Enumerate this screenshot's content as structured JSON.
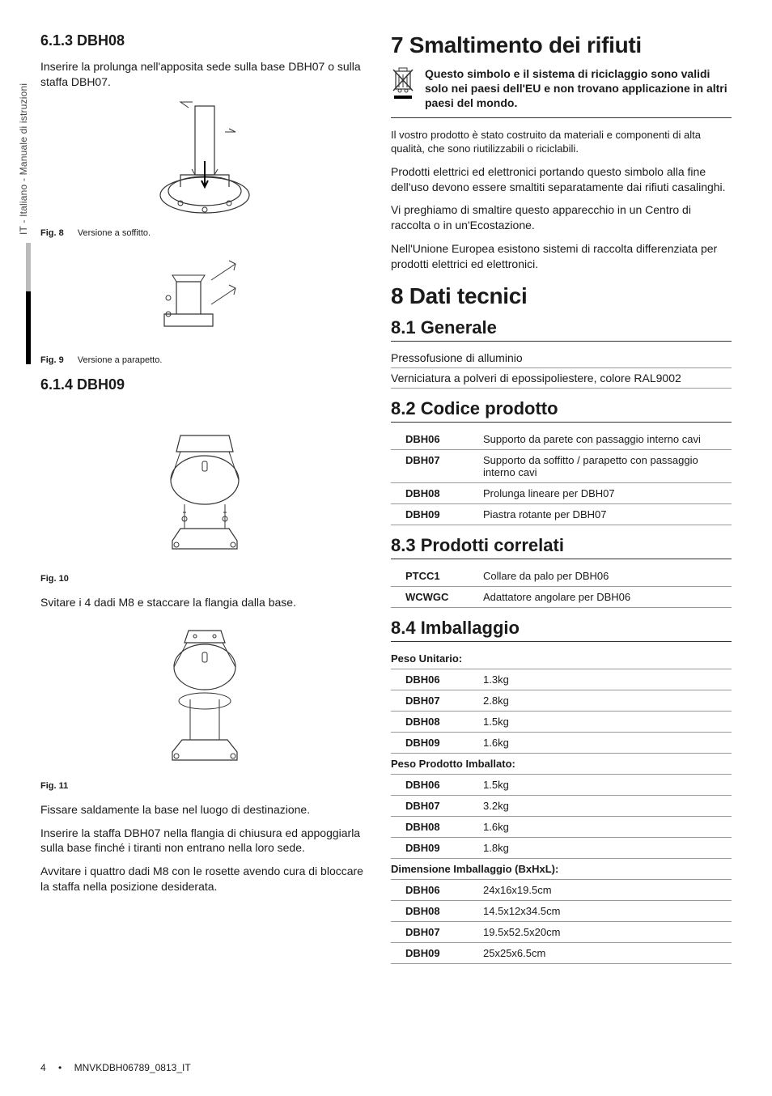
{
  "side": {
    "vertical_text": "IT - Italiano - Manuale di istruzioni"
  },
  "left": {
    "sec613_heading": "6.1.3  DBH08",
    "sec613_body": "Inserire la prolunga nell'apposita sede sulla base DBH07 o sulla staffa DBH07.",
    "fig8": {
      "label": "Fig. 8",
      "caption": "Versione a soffitto."
    },
    "fig9": {
      "label": "Fig. 9",
      "caption": "Versione a parapetto."
    },
    "sec614_heading": "6.1.4  DBH09",
    "fig10": {
      "label": "Fig. 10"
    },
    "body_after_fig10": "Svitare i 4 dadi M8 e staccare la flangia dalla base.",
    "fig11": {
      "label": "Fig. 11"
    },
    "body1_after_fig11": "Fissare saldamente la base nel luogo di destinazione.",
    "body2_after_fig11": "Inserire la staffa DBH07 nella flangia di chiusura ed appoggiarla sulla base finché i tiranti non entrano nella loro sede.",
    "body3_after_fig11": "Avvitare i quattro dadi M8 con le rosette avendo cura di bloccare la staffa nella posizione desiderata."
  },
  "right": {
    "sec7_heading": "7  Smaltimento dei rifiuti",
    "note_text": "Questo simbolo e il sistema di riciclaggio sono validi solo nei paesi dell'EU e non trovano applicazione in altri paesi del mondo.",
    "sec7_p1": "Il vostro prodotto è stato costruito da materiali e componenti di alta qualità, che sono riutilizzabili o riciclabili.",
    "sec7_p2": "Prodotti elettrici ed elettronici portando questo simbolo alla fine dell'uso devono essere smaltiti separatamente dai rifiuti casalinghi.",
    "sec7_p3": "Vi preghiamo di smaltire questo apparecchio in un Centro di raccolta o in un'Ecostazione.",
    "sec7_p4": "Nell'Unione Europea esistono sistemi di raccolta differenziata per prodotti elettrici ed elettronici.",
    "sec8_heading": "8  Dati tecnici",
    "sec81_heading": "8.1  Generale",
    "sec81_l1": "Pressofusione di alluminio",
    "sec81_l2": "Verniciatura a polveri di epossipoliestere, colore RAL9002",
    "sec82_heading": "8.2  Codice prodotto",
    "table82": [
      {
        "code": "DBH06",
        "desc": "Supporto da parete con passaggio interno cavi"
      },
      {
        "code": "DBH07",
        "desc": "Supporto da soffitto / parapetto con passaggio interno cavi"
      },
      {
        "code": "DBH08",
        "desc": "Prolunga lineare per DBH07"
      },
      {
        "code": "DBH09",
        "desc": "Piastra rotante per DBH07"
      }
    ],
    "sec83_heading": "8.3  Prodotti correlati",
    "table83": [
      {
        "code": "PTCC1",
        "desc": "Collare da palo per DBH06"
      },
      {
        "code": "WCWGC",
        "desc": "Adattatore angolare per DBH06"
      }
    ],
    "sec84_heading": "8.4  Imballaggio",
    "table84_unit_header": "Peso Unitario:",
    "table84_unit": [
      {
        "code": "DBH06",
        "val": "1.3kg"
      },
      {
        "code": "DBH07",
        "val": "2.8kg"
      },
      {
        "code": "DBH08",
        "val": "1.5kg"
      },
      {
        "code": "DBH09",
        "val": "1.6kg"
      }
    ],
    "table84_packed_header": "Peso Prodotto Imballato:",
    "table84_packed": [
      {
        "code": "DBH06",
        "val": "1.5kg"
      },
      {
        "code": "DBH07",
        "val": "3.2kg"
      },
      {
        "code": "DBH08",
        "val": "1.6kg"
      },
      {
        "code": "DBH09",
        "val": "1.8kg"
      }
    ],
    "table84_dim_header": "Dimensione Imballaggio (BxHxL):",
    "table84_dim": [
      {
        "code": "DBH06",
        "val": "24x16x19.5cm"
      },
      {
        "code": "DBH08",
        "val": "14.5x12x34.5cm"
      },
      {
        "code": "DBH07",
        "val": "19.5x52.5x20cm"
      },
      {
        "code": "DBH09",
        "val": "25x25x6.5cm"
      }
    ]
  },
  "footer": {
    "page": "4",
    "bullet": "•",
    "docid": "MNVKDBH06789_0813_IT"
  }
}
